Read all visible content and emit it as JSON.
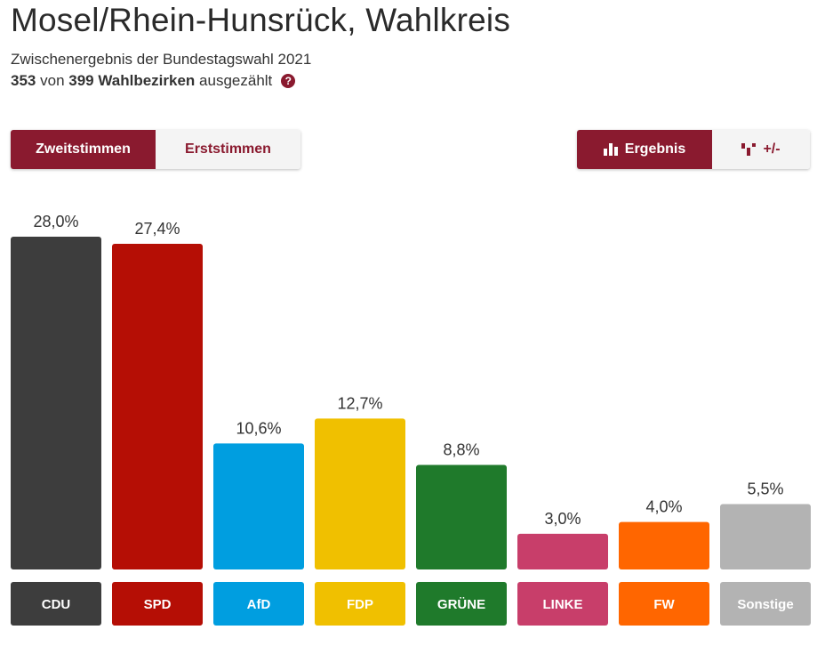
{
  "header": {
    "title": "Mosel/Rhein-Hunsrück, Wahlkreis",
    "subtitle": "Zwischenergebnis der Bundestagswahl 2021",
    "counted_num": "353",
    "counted_von": "von",
    "counted_total": "399 Wahlbezirken",
    "counted_suffix": "ausgezählt",
    "help_icon": "?"
  },
  "toggles": {
    "vote": [
      "Zweitstimmen",
      "Erststimmen"
    ],
    "vote_selected": "Zweitstimmen",
    "view_result": "Ergebnis",
    "view_diff": "+/-",
    "view_selected": "Ergebnis"
  },
  "chart_data": {
    "type": "bar",
    "categories": [
      "CDU",
      "SPD",
      "AfD",
      "FDP",
      "GRÜNE",
      "LINKE",
      "FW",
      "Sonstige"
    ],
    "values": [
      28.0,
      27.4,
      10.6,
      12.7,
      8.8,
      3.0,
      4.0,
      5.5
    ],
    "value_labels": [
      "28,0%",
      "27,4%",
      "10,6%",
      "12,7%",
      "8,8%",
      "3,0%",
      "4,0%",
      "5,5%"
    ],
    "colors": [
      "#3d3d3d",
      "#b50e05",
      "#009ee0",
      "#f0c000",
      "#1f7a2b",
      "#c83e6a",
      "#ff6600",
      "#b3b3b3"
    ],
    "ylim": [
      0,
      28.0
    ],
    "grid": false
  }
}
